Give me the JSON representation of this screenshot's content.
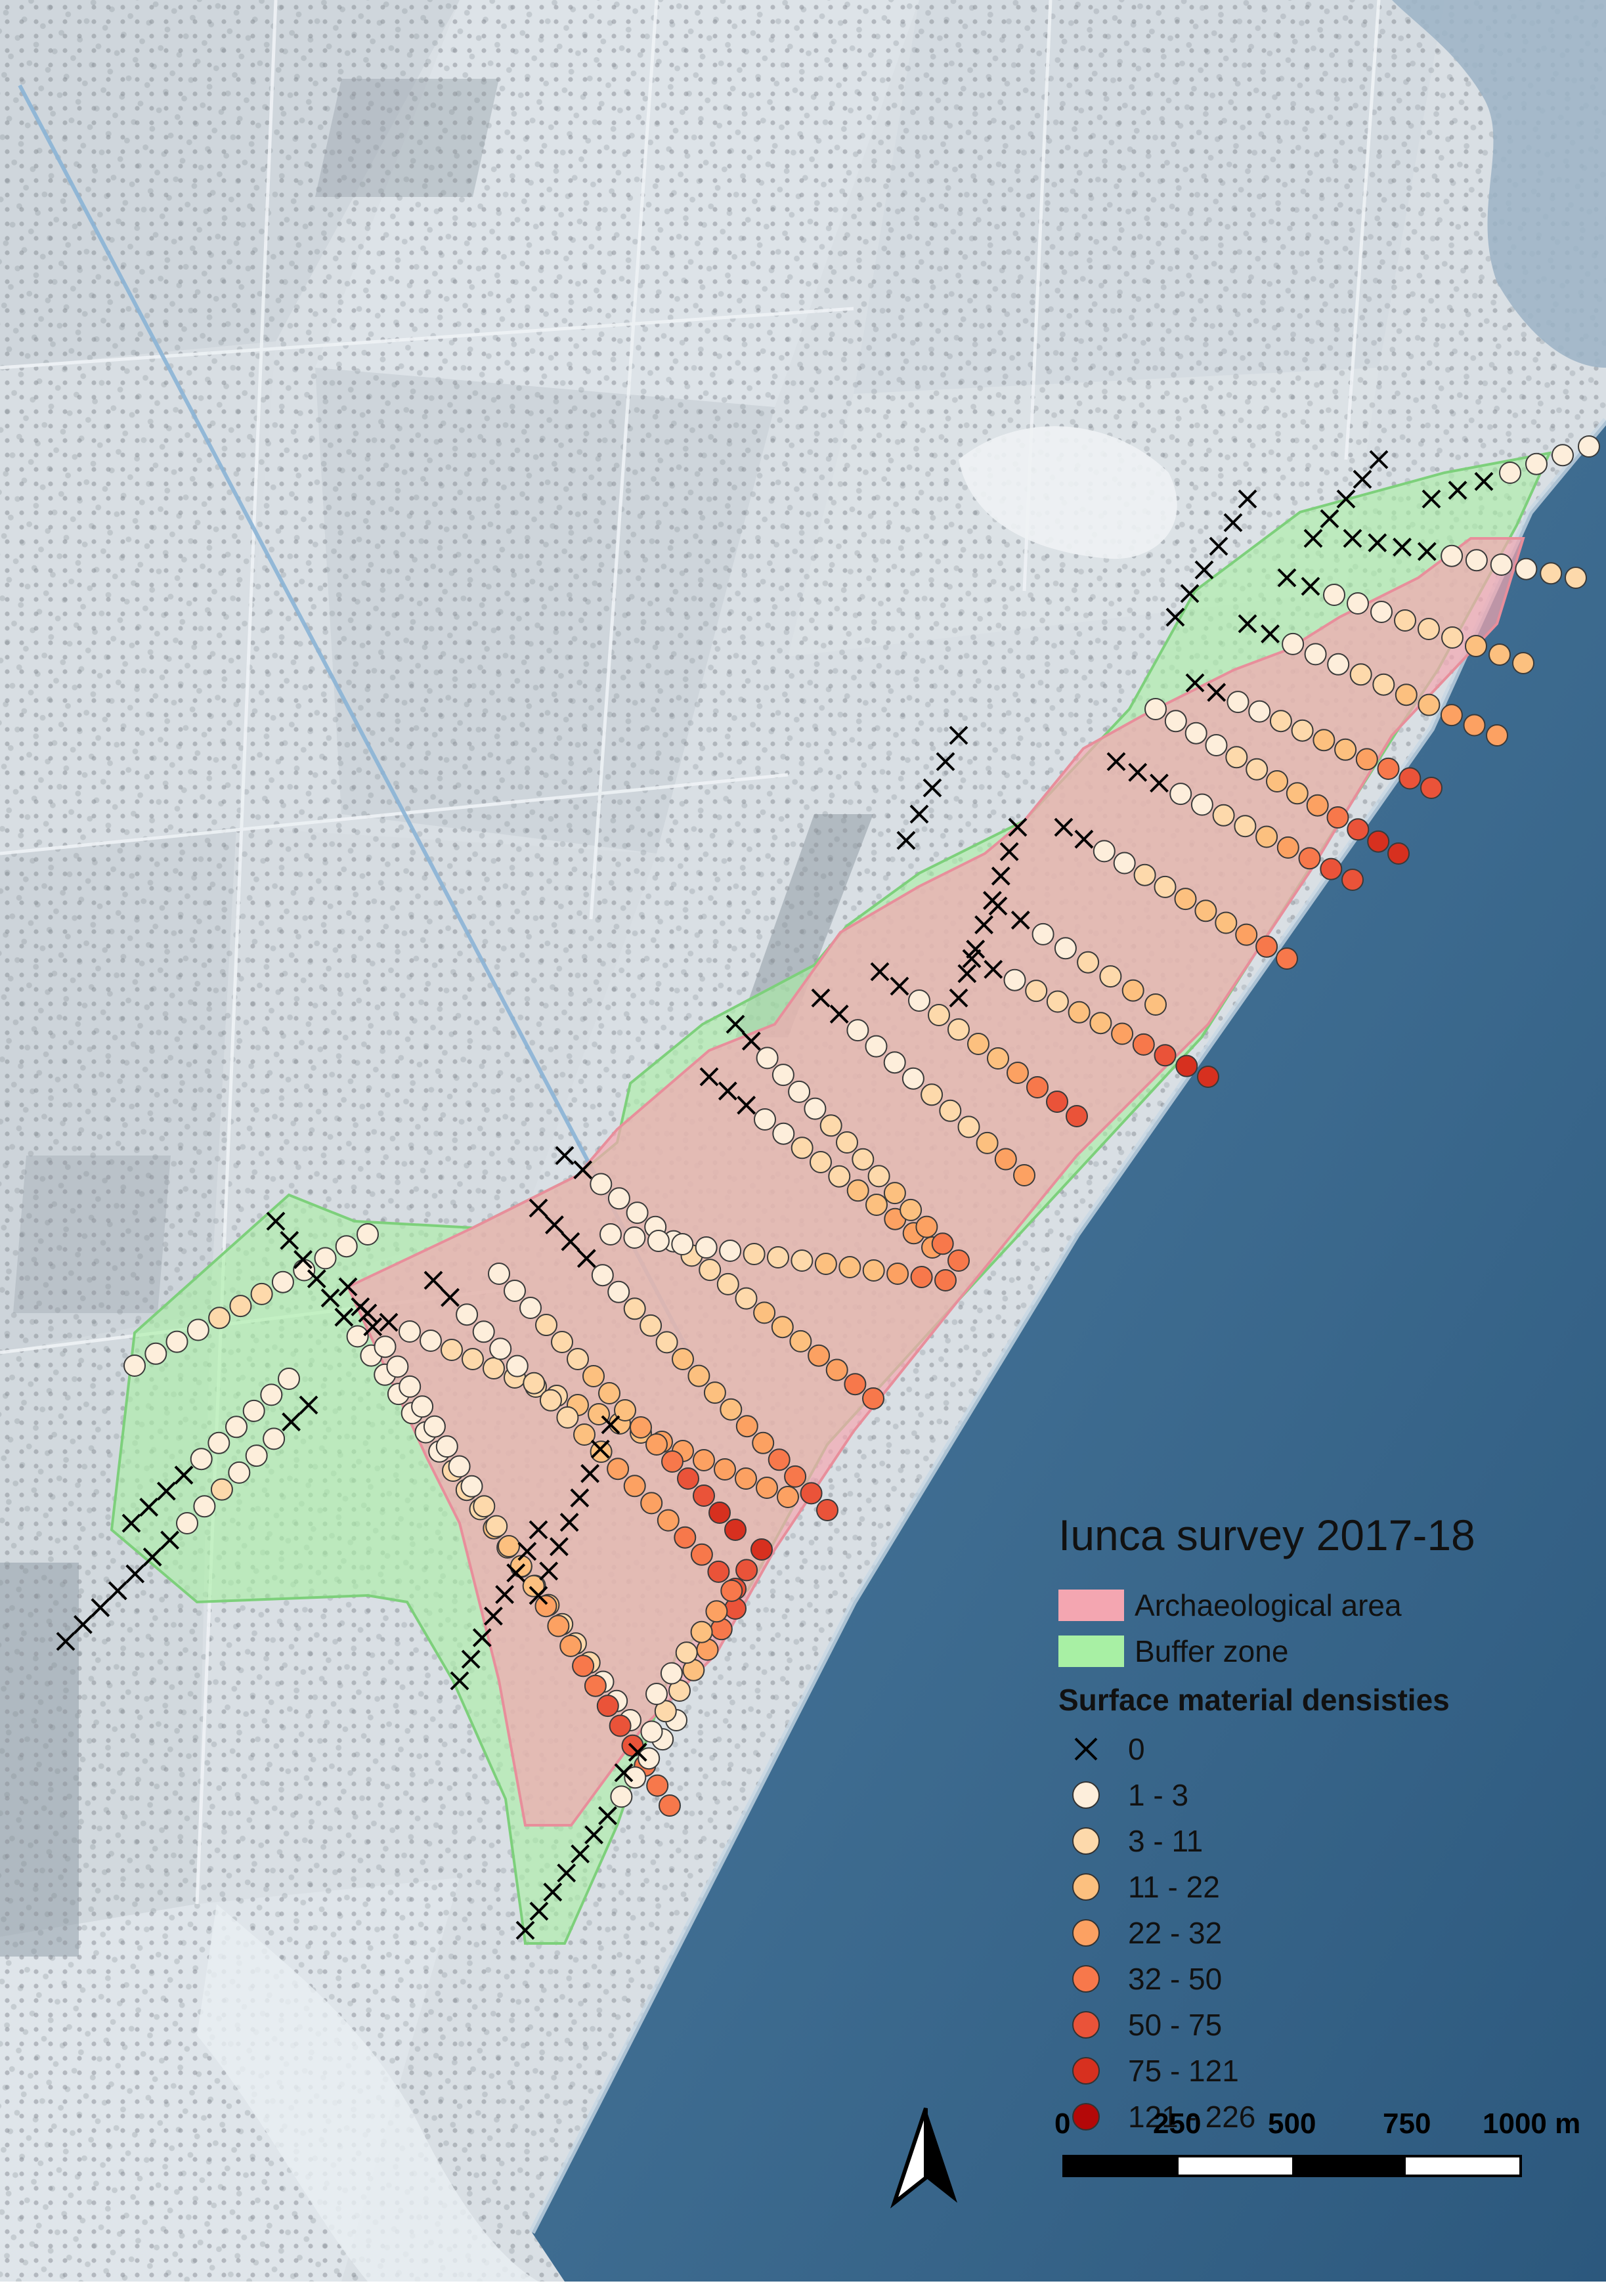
{
  "legend": {
    "title": "Iunca survey 2017-18",
    "areas": [
      {
        "label": "Archaeological area",
        "color": "#f4a6b1"
      },
      {
        "label": "Buffer zone",
        "color": "#a8f0a4"
      }
    ],
    "densities_heading": "Surface material densisties",
    "classes": [
      {
        "label": "0",
        "symbol": "cross",
        "color": "#000000"
      },
      {
        "label": "1 - 3",
        "symbol": "circle",
        "color": "#fdeedb"
      },
      {
        "label": "3 - 11",
        "symbol": "circle",
        "color": "#fdd9ab"
      },
      {
        "label": "11 - 22",
        "symbol": "circle",
        "color": "#fcc07f"
      },
      {
        "label": "22 - 32",
        "symbol": "circle",
        "color": "#fca162"
      },
      {
        "label": "32 - 50",
        "symbol": "circle",
        "color": "#f7784b"
      },
      {
        "label": "50 - 75",
        "symbol": "circle",
        "color": "#ea5339"
      },
      {
        "label": "75 - 121",
        "symbol": "circle",
        "color": "#d7301f"
      },
      {
        "label": "121 - 226",
        "symbol": "circle",
        "color": "#b40808"
      }
    ]
  },
  "scale_bar": {
    "labels": [
      "0",
      "250",
      "500",
      "750",
      "1000 m"
    ],
    "fill_pattern": [
      "black",
      "white",
      "black",
      "white"
    ]
  },
  "north_arrow": {
    "icon": "north-arrow-icon"
  }
}
